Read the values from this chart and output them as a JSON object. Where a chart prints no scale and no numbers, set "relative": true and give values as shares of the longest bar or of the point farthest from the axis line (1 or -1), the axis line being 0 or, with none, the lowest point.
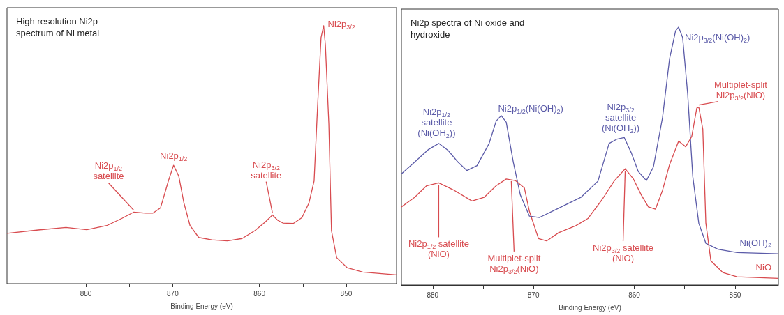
{
  "chart_data": [
    {
      "type": "line",
      "title": "High resolution Ni2p spectrum of Ni metal",
      "xlabel": "Binding Energy (eV)",
      "relative": true,
      "grid": false,
      "legend": false,
      "marker": "none",
      "line_style": "solid",
      "tick_labels": "x",
      "xlim": [
        889.1,
        844.2
      ],
      "xticks": [
        880,
        870,
        860,
        850,
        {
          "value": 885,
          "label": null
        },
        {
          "value": 875,
          "label": null
        },
        {
          "value": 865,
          "label": null
        },
        {
          "value": 855,
          "label": null
        },
        {
          "value": 845,
          "label": null
        }
      ],
      "x": [
        889.1,
        885.5,
        882.3,
        879.9,
        877.6,
        875.8,
        874.5,
        873.1,
        872.3,
        871.4,
        870.5,
        869.9,
        869.3,
        868.7,
        868.0,
        867.0,
        865.5,
        863.7,
        862.0,
        860.5,
        859.3,
        858.5,
        857.9,
        857.3,
        856.1,
        855.1,
        854.3,
        853.7,
        853.3,
        852.9,
        852.6,
        852.4,
        852.0,
        851.7,
        851.1,
        849.9,
        848.1,
        844.2
      ],
      "series": [
        {
          "color": "#d84b4f",
          "values": [
            0.195,
            0.208,
            0.218,
            0.209,
            0.225,
            0.254,
            0.277,
            0.273,
            0.273,
            0.294,
            0.398,
            0.459,
            0.417,
            0.312,
            0.225,
            0.179,
            0.17,
            0.166,
            0.175,
            0.206,
            0.24,
            0.266,
            0.246,
            0.235,
            0.233,
            0.256,
            0.312,
            0.398,
            0.686,
            0.954,
            1,
            0.925,
            0.618,
            0.206,
            0.101,
            0.062,
            0.045,
            0.034
          ]
        }
      ],
      "annotations": [
        {
          "text": "Ni2p$_{1/2}$ satellite",
          "x": 874.5,
          "y": 0.277
        },
        {
          "text": "Ni2p$_{1/2}$",
          "x": 869.9,
          "y": 0.459
        },
        {
          "text": "Ni2p$_{3/2}$ satellite",
          "x": 858.5,
          "y": 0.266
        },
        {
          "text": "Ni2p$_{3/2}$",
          "x": 852.6,
          "y": 1
        }
      ]
    },
    {
      "type": "line",
      "title": "Ni2p spectra of Ni oxide and hydroxide",
      "xlabel": "Binding Energy (eV)",
      "relative": true,
      "grid": false,
      "legend": false,
      "marker": "none",
      "line_style": "solid",
      "tick_labels": "x",
      "xlim": [
        883.1,
        845.7
      ],
      "xticks": [
        880,
        870,
        860,
        850,
        {
          "value": 875,
          "label": null
        },
        {
          "value": 865,
          "label": null
        },
        {
          "value": 855,
          "label": null
        }
      ],
      "series": [
        {
          "name": "Ni(OH)₂",
          "color": "#5b5ba8",
          "x": [
            883.1,
            881.8,
            880.4,
            879.4,
            878.5,
            877.5,
            876.6,
            875.6,
            874.4,
            873.7,
            873.2,
            872.7,
            872.0,
            871.3,
            870.4,
            869.4,
            867.7,
            865.3,
            863.6,
            862.5,
            861.7,
            861.0,
            860.3,
            859.6,
            858.8,
            858.1,
            857.2,
            856.5,
            855.9,
            855.6,
            855.2,
            854.7,
            854.2,
            853.6,
            852.9,
            851.7,
            849.8,
            845.7
          ],
          "values": [
            0.431,
            0.476,
            0.526,
            0.549,
            0.523,
            0.477,
            0.444,
            0.463,
            0.549,
            0.636,
            0.657,
            0.631,
            0.476,
            0.349,
            0.267,
            0.262,
            0.294,
            0.34,
            0.403,
            0.549,
            0.566,
            0.572,
            0.513,
            0.44,
            0.405,
            0.458,
            0.649,
            0.877,
            0.986,
            1,
            0.959,
            0.74,
            0.422,
            0.24,
            0.162,
            0.139,
            0.126,
            0.121
          ]
        },
        {
          "name": "NiO",
          "color": "#d84b4f",
          "x": [
            883.1,
            881.8,
            880.6,
            879.4,
            878.0,
            876.1,
            874.9,
            873.7,
            872.7,
            871.8,
            870.9,
            870.4,
            869.5,
            868.7,
            867.5,
            865.8,
            864.6,
            863.2,
            862.0,
            860.9,
            860.1,
            859.3,
            858.6,
            857.9,
            857.2,
            856.5,
            855.6,
            854.9,
            854.3,
            853.8,
            853.6,
            853.2,
            852.9,
            852.4,
            851.2,
            849.8,
            845.7
          ],
          "values": [
            0.303,
            0.34,
            0.385,
            0.396,
            0.37,
            0.326,
            0.34,
            0.385,
            0.411,
            0.405,
            0.376,
            0.285,
            0.18,
            0.171,
            0.203,
            0.23,
            0.258,
            0.331,
            0.403,
            0.451,
            0.412,
            0.349,
            0.303,
            0.294,
            0.367,
            0.467,
            0.558,
            0.536,
            0.576,
            0.686,
            0.69,
            0.604,
            0.24,
            0.094,
            0.048,
            0.032,
            0.026
          ]
        }
      ],
      "annotations": [
        {
          "text": "Ni2p$_{1/2}$ satellite (Ni(OH$_{2}$))",
          "x": 879.4,
          "y": 0.549
        },
        {
          "text": "Ni2p$_{1/2}$(Ni(OH)$_{2}$)",
          "x": 873.2,
          "y": 0.657
        },
        {
          "text": "Ni2p$_{3/2}$ satellite (Ni(OH$_{2}$))",
          "x": 861.0,
          "y": 0.572
        },
        {
          "text": "Ni2p$_{3/2}$(Ni(OH)$_{2}$)",
          "x": 855.6,
          "y": 1
        },
        {
          "text": "Multiplet-split Ni2p$_{3/2}$(NiO)",
          "x": 853.6,
          "y": 0.69
        },
        {
          "text": "Ni2p$_{1/2}$ satellite (NiO)",
          "x": 879.4,
          "y": 0.396
        },
        {
          "text": "Multiplet-split Ni2p$_{3/2}$(NiO)",
          "x": 872.2,
          "y": 0.411
        },
        {
          "text": "Ni2p$_{3/2}$ satellite (NiO)",
          "x": 860.9,
          "y": 0.451
        }
      ]
    }
  ]
}
